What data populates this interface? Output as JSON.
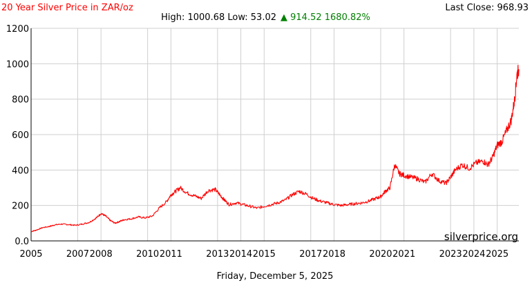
{
  "header": {
    "title": "20 Year Silver Price in ZAR/oz",
    "last_close": "Last Close: 968.93",
    "high_low": "High: 1000.68 Low: 53.02",
    "change": "▲ 914.52 1680.82%"
  },
  "footer": {
    "date": "Friday, December 5, 2025",
    "watermark": "silverprice.org"
  },
  "colors": {
    "line": "#ff0000",
    "title": "#ff0000",
    "change_up": "#008000",
    "grid": "#cfcfcf"
  },
  "chart_data": {
    "type": "line",
    "title": "20 Year Silver Price in ZAR/oz",
    "xlabel": "",
    "ylabel": "",
    "ylim": [
      0,
      1200
    ],
    "xlim": [
      2005.0,
      2025.93
    ],
    "grid": true,
    "y_ticks": [
      "0.0",
      "200",
      "400",
      "600",
      "800",
      "1000",
      "1200"
    ],
    "x_ticks": [
      {
        "label": "2005",
        "x": 2005.0
      },
      {
        "label": "2007",
        "x": 2007.0
      },
      {
        "label": "2008",
        "x": 2008.0
      },
      {
        "label": "2010",
        "x": 2010.0
      },
      {
        "label": "2011",
        "x": 2011.0
      },
      {
        "label": "2013",
        "x": 2013.0
      },
      {
        "label": "2014",
        "x": 2014.0
      },
      {
        "label": "2015",
        "x": 2015.0
      },
      {
        "label": "2017",
        "x": 2017.0
      },
      {
        "label": "2018",
        "x": 2018.0
      },
      {
        "label": "2020",
        "x": 2020.0
      },
      {
        "label": "2021",
        "x": 2021.0
      },
      {
        "label": "2023",
        "x": 2023.0
      },
      {
        "label": "2024",
        "x": 2024.0
      },
      {
        "label": "2025",
        "x": 2025.0
      }
    ],
    "series": [
      {
        "x": [
          2005.0,
          2005.2,
          2005.5,
          2005.8,
          2006.0,
          2006.3,
          2006.6,
          2006.9,
          2007.2,
          2007.5,
          2007.8,
          2008.0,
          2008.2,
          2008.4,
          2008.6,
          2008.8,
          2009.0,
          2009.3,
          2009.6,
          2009.9,
          2010.2,
          2010.5,
          2010.8,
          2011.0,
          2011.2,
          2011.4,
          2011.7,
          2012.0,
          2012.3,
          2012.6,
          2012.9,
          2013.1,
          2013.3,
          2013.5,
          2013.8,
          2014.1,
          2014.4,
          2014.7,
          2015.0,
          2015.3,
          2015.6,
          2015.9,
          2016.2,
          2016.5,
          2016.8,
          2017.1,
          2017.4,
          2017.7,
          2018.0,
          2018.3,
          2018.6,
          2018.9,
          2019.2,
          2019.5,
          2019.8,
          2020.0,
          2020.2,
          2020.4,
          2020.6,
          2020.8,
          2021.0,
          2021.3,
          2021.6,
          2021.9,
          2022.2,
          2022.5,
          2022.8,
          2023.0,
          2023.2,
          2023.5,
          2023.8,
          2024.1,
          2024.4,
          2024.6,
          2024.8,
          2025.0,
          2025.2,
          2025.4,
          2025.6,
          2025.75,
          2025.85,
          2025.93
        ],
        "values": [
          53,
          60,
          75,
          82,
          90,
          95,
          92,
          88,
          95,
          105,
          130,
          155,
          140,
          115,
          100,
          110,
          120,
          125,
          135,
          130,
          140,
          185,
          220,
          260,
          280,
          300,
          270,
          255,
          240,
          285,
          290,
          260,
          230,
          205,
          215,
          205,
          195,
          185,
          195,
          205,
          215,
          230,
          260,
          280,
          265,
          240,
          225,
          215,
          205,
          200,
          205,
          210,
          215,
          225,
          240,
          250,
          280,
          300,
          430,
          380,
          370,
          360,
          350,
          330,
          380,
          340,
          325,
          360,
          400,
          430,
          410,
          440,
          450,
          430,
          470,
          540,
          560,
          620,
          680,
          800,
          940,
          968.93
        ]
      }
    ]
  }
}
